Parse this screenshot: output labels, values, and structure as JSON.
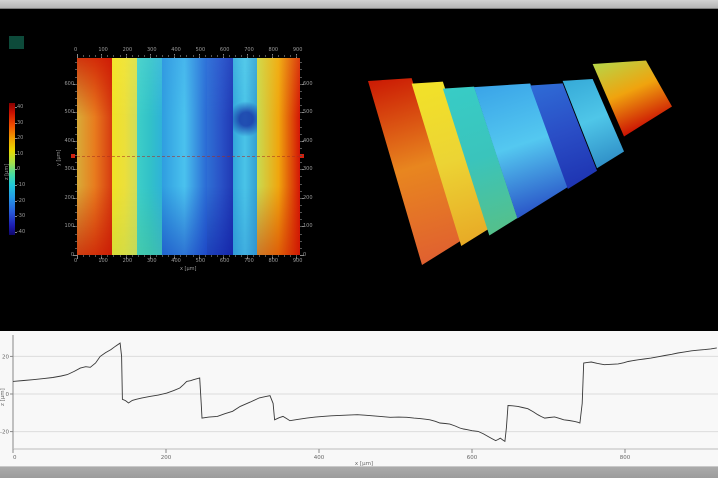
{
  "window": {
    "top_bar": "",
    "bottom_bar": "",
    "background_color": "#000000",
    "indicator_color": "#0d4a3a"
  },
  "heatmap": {
    "x_axis": {
      "label": "x [µm]",
      "ticks": [
        "0",
        "100",
        "200",
        "300",
        "400",
        "500",
        "600",
        "700",
        "800",
        "900"
      ]
    },
    "y_axis": {
      "label": "y [µm]",
      "ticks": [
        "0",
        "100",
        "200",
        "300",
        "400",
        "500",
        "600"
      ]
    },
    "colorbar": {
      "label": "z [µm]",
      "ticks": [
        "40",
        "30",
        "20",
        "10",
        "0",
        "-10",
        "-20",
        "-30",
        "-40"
      ]
    },
    "profile_cut": {
      "y_um": 350,
      "marker_color": "#cf2210"
    }
  },
  "surface_3d": {
    "description": "3d-surface-view"
  },
  "profile_chart": {
    "xlabel": "x [µm]",
    "ylabel": "z [µm]",
    "x_tick_values": [
      0,
      200,
      400,
      600,
      800
    ],
    "x_tick_labels": [
      "0",
      "200",
      "400",
      "600",
      "800"
    ],
    "y_tick_values": [
      20,
      0,
      -20
    ],
    "y_tick_labels": [
      "20",
      "0",
      "-20"
    ]
  },
  "chart_data": [
    {
      "type": "heatmap",
      "title": "",
      "xlabel": "x [µm]",
      "ylabel": "y [µm]",
      "zlabel": "z [µm]",
      "x_range_um": [
        0,
        917
      ],
      "y_range_um": [
        0,
        690
      ],
      "z_range_um": [
        -40,
        40
      ],
      "x_ticks": [
        0,
        100,
        200,
        300,
        400,
        500,
        600,
        700,
        800,
        900
      ],
      "y_ticks": [
        0,
        100,
        200,
        300,
        400,
        500,
        600
      ],
      "colorbar_ticks": [
        40,
        30,
        20,
        10,
        0,
        -10,
        -20,
        -30,
        -40
      ],
      "bands": [
        {
          "from_um": 0,
          "to_um": 144,
          "z_mean_um": 14,
          "h": [
            "#d8ab38",
            "#e87c1e",
            "#d63b10"
          ],
          "vt": "rgba(204,18,2,0.75)",
          "vb": "rgba(198,16,2,0.7)",
          "len": [
            "#cb1a04",
            "#e8861f",
            "#e06030"
          ]
        },
        {
          "from_um": 144,
          "to_um": 247,
          "z_mean_um": 3,
          "h": [
            "#f0e226",
            "#ecdf3a",
            "#cfdd5a"
          ],
          "vt": "rgba(255,244,60,0.25)",
          "vb": "rgba(160,210,90,0.3)",
          "len": [
            "#f2e228",
            "#ecd434",
            "#e8aa26"
          ]
        },
        {
          "from_um": 247,
          "to_um": 350,
          "z_mean_um": -11,
          "h": [
            "#3ecfc8",
            "#32c2c8",
            "#2fb2d8"
          ],
          "vt": "rgba(140,235,225,0.18)",
          "vb": "rgba(80,195,125,0.35)",
          "len": [
            "#38ccc6",
            "#3ac4bc",
            "#55c08a"
          ]
        },
        {
          "from_um": 350,
          "to_um": 535,
          "z_mean_um": -12,
          "h": [
            "#2f9de0",
            "#4ac2ee",
            "#2a68d4"
          ],
          "vt": "rgba(60,140,230,0.2)",
          "vb": "rgba(18,40,185,0.5)",
          "len": [
            "#3aa4e8",
            "#54c8f0",
            "#2a55c8"
          ]
        },
        {
          "from_um": 535,
          "to_um": 642,
          "z_mean_um": -16,
          "h": [
            "#2e6fd4",
            "#2a54c8",
            "#2038b4"
          ],
          "vt": "rgba(70,130,235,0.18)",
          "vb": "rgba(12,22,160,0.5)",
          "len": [
            "#2f6cd6",
            "#2a4ec6",
            "#1e34b2"
          ]
        },
        {
          "from_um": 642,
          "to_um": 741,
          "z_mean_um": -11,
          "h": [
            "#32a6da",
            "#4ac4e8",
            "#339ed2"
          ],
          "vt": "rgba(140,235,245,0.15)",
          "vb": "rgba(40,125,205,0.3)",
          "len": [
            "#36aad8",
            "#4fc6e8",
            "#3090c8"
          ],
          "spot": true
        },
        {
          "from_um": 741,
          "to_um": 917,
          "z_mean_um": 19,
          "h": [
            "#c8dc52",
            "#f0a60e",
            "#d31505"
          ],
          "vt": "rgba(245,210,50,0.2)",
          "vb": "rgba(205,25,2,0.5)",
          "len": [
            "#b6d648",
            "#f0a30e",
            "#cc1304"
          ]
        }
      ]
    },
    {
      "type": "surface3d",
      "title": "",
      "colormap": "jet",
      "uses_bands_of": 0
    },
    {
      "type": "line",
      "title": "",
      "xlabel": "x [µm]",
      "ylabel": "z [µm]",
      "xlim": [
        0,
        920
      ],
      "ylim": [
        -29,
        30
      ],
      "x_ticks": [
        0,
        200,
        400,
        600,
        800
      ],
      "y_ticks": [
        20,
        0,
        -20
      ],
      "grid": true,
      "line_color": "#383838",
      "points": [
        [
          0,
          6.7
        ],
        [
          14,
          7.2
        ],
        [
          26,
          7.6
        ],
        [
          40,
          8.2
        ],
        [
          52,
          8.8
        ],
        [
          63,
          9.6
        ],
        [
          71,
          10.3
        ],
        [
          80,
          12.0
        ],
        [
          88,
          13.8
        ],
        [
          95,
          14.5
        ],
        [
          101,
          14.2
        ],
        [
          108,
          16.5
        ],
        [
          114,
          20.0
        ],
        [
          121,
          22.0
        ],
        [
          128,
          23.6
        ],
        [
          134,
          25.4
        ],
        [
          140,
          27.1
        ],
        [
          142,
          20.0
        ],
        [
          143,
          -2.8
        ],
        [
          147,
          -3.5
        ],
        [
          151,
          -4.8
        ],
        [
          156,
          -3.4
        ],
        [
          161,
          -2.8
        ],
        [
          168,
          -2.2
        ],
        [
          179,
          -1.3
        ],
        [
          190,
          -0.6
        ],
        [
          201,
          0.5
        ],
        [
          210,
          1.8
        ],
        [
          218,
          3.2
        ],
        [
          223,
          5.0
        ],
        [
          227,
          6.7
        ],
        [
          232,
          7.1
        ],
        [
          236,
          7.6
        ],
        [
          240,
          8.1
        ],
        [
          244,
          8.5
        ],
        [
          246,
          -5.0
        ],
        [
          247,
          -12.8
        ],
        [
          256,
          -12.3
        ],
        [
          267,
          -11.9
        ],
        [
          277,
          -10.5
        ],
        [
          287,
          -9.2
        ],
        [
          297,
          -6.6
        ],
        [
          310,
          -4.3
        ],
        [
          322,
          -2.1
        ],
        [
          330,
          -1.4
        ],
        [
          336,
          -0.9
        ],
        [
          340,
          -5.0
        ],
        [
          342,
          -13.7
        ],
        [
          348,
          -12.6
        ],
        [
          353,
          -11.9
        ],
        [
          358,
          -13.2
        ],
        [
          362,
          -14.2
        ],
        [
          372,
          -13.5
        ],
        [
          384,
          -12.8
        ],
        [
          395,
          -12.3
        ],
        [
          405,
          -11.9
        ],
        [
          416,
          -11.6
        ],
        [
          427,
          -11.4
        ],
        [
          438,
          -11.2
        ],
        [
          450,
          -11.0
        ],
        [
          460,
          -11.3
        ],
        [
          470,
          -11.6
        ],
        [
          482,
          -12.0
        ],
        [
          493,
          -12.4
        ],
        [
          504,
          -12.3
        ],
        [
          515,
          -12.4
        ],
        [
          524,
          -12.8
        ],
        [
          532,
          -13.1
        ],
        [
          539,
          -13.4
        ],
        [
          545,
          -13.7
        ],
        [
          552,
          -14.5
        ],
        [
          558,
          -15.4
        ],
        [
          565,
          -15.7
        ],
        [
          571,
          -16.0
        ],
        [
          578,
          -17.0
        ],
        [
          584,
          -18.1
        ],
        [
          589,
          -18.6
        ],
        [
          594,
          -19.0
        ],
        [
          600,
          -19.5
        ],
        [
          608,
          -19.9
        ],
        [
          615,
          -21.2
        ],
        [
          621,
          -22.6
        ],
        [
          626,
          -23.7
        ],
        [
          631,
          -24.8
        ],
        [
          634,
          -24.2
        ],
        [
          637,
          -23.5
        ],
        [
          640,
          -24.4
        ],
        [
          643,
          -25.2
        ],
        [
          645,
          -18.0
        ],
        [
          647,
          -6.1
        ],
        [
          653,
          -6.3
        ],
        [
          660,
          -6.6
        ],
        [
          666,
          -7.2
        ],
        [
          673,
          -7.8
        ],
        [
          680,
          -9.4
        ],
        [
          686,
          -11.0
        ],
        [
          690,
          -11.9
        ],
        [
          695,
          -12.8
        ],
        [
          701,
          -12.5
        ],
        [
          708,
          -12.2
        ],
        [
          714,
          -12.9
        ],
        [
          720,
          -13.7
        ],
        [
          727,
          -14.1
        ],
        [
          734,
          -14.6
        ],
        [
          738,
          -15.0
        ],
        [
          741,
          -15.4
        ],
        [
          744,
          -5.0
        ],
        [
          746,
          16.5
        ],
        [
          751,
          16.8
        ],
        [
          756,
          17.0
        ],
        [
          764,
          16.3
        ],
        [
          773,
          15.6
        ],
        [
          782,
          15.8
        ],
        [
          791,
          16.0
        ],
        [
          798,
          16.6
        ],
        [
          804,
          17.3
        ],
        [
          810,
          17.7
        ],
        [
          817,
          18.2
        ],
        [
          825,
          18.6
        ],
        [
          834,
          19.1
        ],
        [
          843,
          19.8
        ],
        [
          852,
          20.5
        ],
        [
          861,
          21.1
        ],
        [
          869,
          21.8
        ],
        [
          878,
          22.4
        ],
        [
          887,
          23.0
        ],
        [
          895,
          23.3
        ],
        [
          904,
          23.6
        ],
        [
          912,
          24.0
        ],
        [
          920,
          24.5
        ]
      ]
    }
  ]
}
